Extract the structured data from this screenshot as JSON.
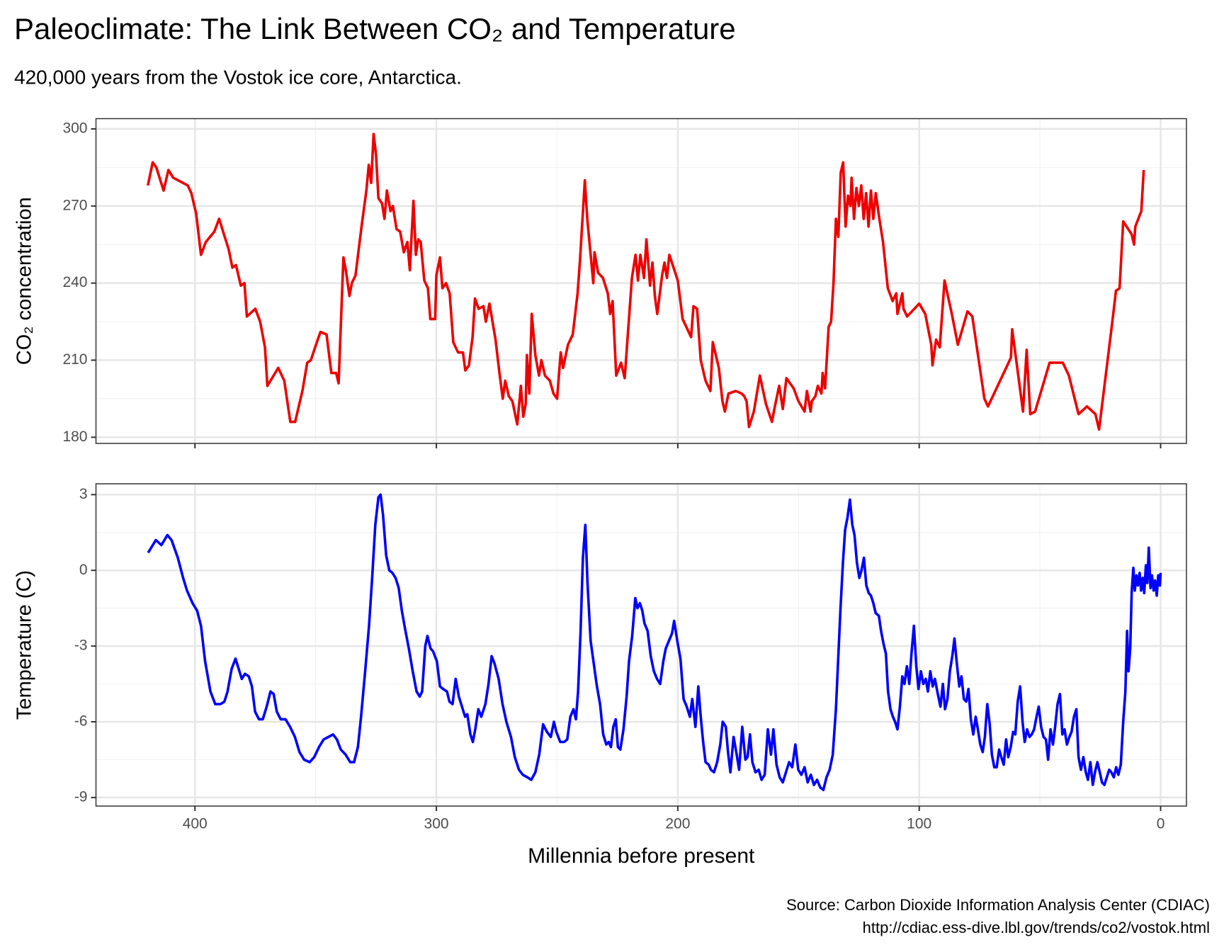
{
  "title": "Paleoclimate: The Link Between CO₂ and Temperature",
  "subtitle": "420,000 years from the Vostok ice core, Antarctica.",
  "caption": [
    "Source: Carbon Dioxide Information Analysis Center (CDIAC)",
    "http://cdiac.ess-dive.lbl.gov/trends/co2/vostok.html"
  ],
  "chart_data": [
    {
      "type": "line",
      "ylabel": "CO₂ concentration",
      "color": "#ee0000",
      "grid": true,
      "xlim": [
        441,
        -10.7
      ],
      "xticks": [
        400,
        300,
        200,
        100,
        0
      ],
      "ylim": [
        177.6,
        304
      ],
      "yticks": [
        180,
        210,
        240,
        270,
        300
      ],
      "x": [
        419.5,
        417.5,
        416,
        413,
        411,
        409,
        403,
        401.5,
        399.5,
        397.5,
        395.5,
        392,
        390,
        386,
        384.5,
        383,
        381,
        379.5,
        378.5,
        375,
        373,
        371,
        370,
        365.5,
        363,
        360.5,
        358.5,
        355.5,
        353.5,
        352,
        349.5,
        348,
        345.5,
        343.5,
        341.5,
        340.5,
        338.5,
        337.5,
        336,
        335,
        333.5,
        331,
        329,
        328,
        327,
        326,
        325,
        324,
        322.5,
        321.5,
        320.5,
        319,
        318,
        316.5,
        315,
        313.5,
        312,
        311,
        309.5,
        308.5,
        307.5,
        306.5,
        305,
        303.5,
        302.5,
        300.5,
        300,
        298.5,
        297.5,
        296,
        294.5,
        293,
        291,
        289,
        288,
        286.5,
        285,
        284,
        282.5,
        280.5,
        279.5,
        278,
        275.5,
        274,
        272.5,
        271.5,
        270,
        268.5,
        266.5,
        265,
        264,
        263,
        262.5,
        261.5,
        260.5,
        259,
        257.5,
        256.5,
        255,
        253,
        251.5,
        250,
        248.5,
        247.5,
        245.5,
        243.5,
        241.5,
        240.5,
        238.5,
        237.5,
        236,
        235,
        234.5,
        233,
        231,
        229,
        228,
        227,
        225.5,
        223.5,
        222,
        221,
        219,
        217.5,
        216.5,
        215.5,
        214,
        213,
        211.5,
        210.5,
        209.5,
        208.5,
        206.5,
        205.5,
        204.5,
        203.5,
        200,
        198,
        196.5,
        194.5,
        193.5,
        192,
        190.5,
        188.5,
        186.5,
        185.5,
        183,
        181.5,
        180.5,
        179,
        176,
        173.5,
        172.5,
        171.5,
        170.5,
        168.5,
        166,
        163.5,
        161,
        160,
        158,
        156.5,
        155,
        152,
        150,
        147.5,
        146.5,
        145,
        144.5,
        143,
        142,
        140.5,
        140,
        139,
        137.5,
        136.5,
        135.5,
        134.5,
        133.5,
        132.5,
        131.5,
        130.5,
        129.5,
        128.5,
        128,
        127,
        126,
        125,
        124,
        123,
        122,
        121,
        120,
        119,
        118,
        116.5,
        115,
        113,
        111,
        109.5,
        109,
        107,
        106.5,
        105,
        100,
        97.5,
        95,
        94.5,
        93,
        91.5,
        89.5,
        86.5,
        84,
        80,
        78,
        73,
        71.5,
        62,
        61.5,
        57,
        55.5,
        54,
        52,
        46,
        40.5,
        38,
        34,
        30.5,
        27,
        25.5,
        20,
        18.5,
        17,
        15.5,
        12,
        11,
        10.5,
        8,
        7
      ],
      "values": [
        278,
        287,
        285,
        276,
        284,
        281,
        278,
        275,
        267,
        251,
        256,
        260,
        265,
        253,
        246,
        247,
        239,
        240,
        227,
        230,
        225,
        215,
        200,
        207,
        202,
        186,
        186,
        198,
        209,
        210,
        217,
        221,
        220,
        205,
        205,
        201,
        250,
        245,
        235,
        240,
        243,
        262,
        276,
        286,
        279,
        298,
        290,
        273,
        271,
        265,
        276,
        268,
        270,
        261,
        260,
        252,
        256,
        245,
        272,
        251,
        257,
        256,
        241,
        238,
        226,
        226,
        243,
        250,
        238,
        240,
        236,
        217,
        213,
        213,
        206,
        208,
        219,
        234,
        230,
        231,
        225,
        232,
        218,
        206,
        195,
        202,
        196,
        194,
        185,
        200,
        188,
        193,
        212,
        197,
        228,
        212,
        204,
        210,
        204,
        202,
        197,
        195,
        213,
        207,
        216,
        220,
        236,
        249,
        280,
        265,
        250,
        240,
        252,
        244,
        242,
        236,
        228,
        233,
        204,
        209,
        203,
        216,
        242,
        251,
        241,
        251,
        242,
        257,
        239,
        248,
        235,
        228,
        243,
        248,
        242,
        251,
        241,
        226,
        223,
        219,
        231,
        230,
        210,
        202,
        198,
        217,
        207,
        194,
        190,
        197,
        198,
        197,
        196,
        194,
        184,
        190,
        204,
        193,
        186,
        191,
        200,
        191,
        203,
        199,
        194,
        190,
        198,
        190,
        194,
        196,
        200,
        197,
        205,
        199,
        223,
        225,
        240,
        265,
        258,
        283,
        287,
        262,
        274,
        270,
        281,
        265,
        277,
        270,
        278,
        265,
        275,
        262,
        276,
        265,
        275,
        265,
        256,
        238,
        233,
        236,
        228,
        236,
        230,
        227,
        232,
        228,
        216,
        208,
        218,
        215,
        241,
        228,
        216,
        229,
        227,
        195,
        192,
        211,
        222,
        190,
        214,
        189,
        190,
        209,
        209,
        204,
        189,
        192,
        189,
        183,
        225,
        237,
        238,
        264,
        259,
        255,
        262,
        268,
        284
      ]
    },
    {
      "type": "line",
      "ylabel": "Temperature (C)",
      "xlabel": "Millennia before present",
      "color": "#0000ff",
      "grid": true,
      "xlim": [
        441,
        -10.7
      ],
      "xticks": [
        400,
        300,
        200,
        100,
        0
      ],
      "ylim": [
        -9.34,
        3.43
      ],
      "yticks": [
        -9,
        -6,
        -3,
        0,
        3
      ],
      "x": [
        419.4,
        416.2,
        413.9,
        411.4,
        409.7,
        407.1,
        404.9,
        403.3,
        401.0,
        399.1,
        397.5,
        395.8,
        393.6,
        391.6,
        389.4,
        387.8,
        386.5,
        384.8,
        383.2,
        381.9,
        380.6,
        379.3,
        377.7,
        376.4,
        375.1,
        373.5,
        371.9,
        370.3,
        368.7,
        367.4,
        366.1,
        364.5,
        362.5,
        360.6,
        358.6,
        356.7,
        354.8,
        352.5,
        350.6,
        348.6,
        346.7,
        344.7,
        342.8,
        341.2,
        339.6,
        337.6,
        335.7,
        334.1,
        332.5,
        331.2,
        329.5,
        327.9,
        326.6,
        325.3,
        324.0,
        323.1,
        322.1,
        320.8,
        319.5,
        318.2,
        316.9,
        315.6,
        314.3,
        313.0,
        311.4,
        309.8,
        308.2,
        306.9,
        305.9,
        304.6,
        303.7,
        302.4,
        301.4,
        299.8,
        298.5,
        297.2,
        295.6,
        294.6,
        293.3,
        292.0,
        290.7,
        289.4,
        288.1,
        287.2,
        285.9,
        284.9,
        283.9,
        282.6,
        281.4,
        279.7,
        278.4,
        277.1,
        275.9,
        274.2,
        272.6,
        271.0,
        269.1,
        267.5,
        265.8,
        264.2,
        262.3,
        260.7,
        259.0,
        257.4,
        255.8,
        254.2,
        252.6,
        251.3,
        250.3,
        248.7,
        247.1,
        245.8,
        244.5,
        243.2,
        242.2,
        241.3,
        240.3,
        239.3,
        238.3,
        237.4,
        236.1,
        234.8,
        233.5,
        232.2,
        230.9,
        229.6,
        228.6,
        227.7,
        226.7,
        225.7,
        224.8,
        223.8,
        222.5,
        221.2,
        220.2,
        218.9,
        217.6,
        216.7,
        215.7,
        214.7,
        213.8,
        212.5,
        211.2,
        209.9,
        208.6,
        207.3,
        206.0,
        205.0,
        203.7,
        202.4,
        201.5,
        200.2,
        198.9,
        197.6,
        196.3,
        195.0,
        194.0,
        192.7,
        191.5,
        190.5,
        189.5,
        188.5,
        187.2,
        186.3,
        185.0,
        183.7,
        182.4,
        181.4,
        180.1,
        179.2,
        178.2,
        176.9,
        175.6,
        174.6,
        173.3,
        172.0,
        171.1,
        170.1,
        169.1,
        167.8,
        166.5,
        165.3,
        164.0,
        162.7,
        161.4,
        160.4,
        159.1,
        157.8,
        156.5,
        155.2,
        153.9,
        152.6,
        151.3,
        150.1,
        148.8,
        147.5,
        146.2,
        144.9,
        143.6,
        142.3,
        141.0,
        139.7,
        138.4,
        137.1,
        135.8,
        134.5,
        133.6,
        132.6,
        131.6,
        130.7,
        129.7,
        128.7,
        127.7,
        126.8,
        125.8,
        124.8,
        123.9,
        122.9,
        121.9,
        120.9,
        120.0,
        119.0,
        118.0,
        116.7,
        115.8,
        114.8,
        113.8,
        112.9,
        111.9,
        110.9,
        110.0,
        109.0,
        108.0,
        107.0,
        106.1,
        105.1,
        104.1,
        103.2,
        102.2,
        101.2,
        100.3,
        99.3,
        98.3,
        97.3,
        96.4,
        95.4,
        94.4,
        93.5,
        92.5,
        91.2,
        90.2,
        89.3,
        88.3,
        87.3,
        86.3,
        85.4,
        84.4,
        83.4,
        82.5,
        81.5,
        80.5,
        79.6,
        78.6,
        77.6,
        76.6,
        75.7,
        74.7,
        73.7,
        72.8,
        71.8,
        70.8,
        69.9,
        68.9,
        67.9,
        66.9,
        66.0,
        65.0,
        64.0,
        63.1,
        62.1,
        61.1,
        60.2,
        59.2,
        58.2,
        57.2,
        56.3,
        55.3,
        54.3,
        53.4,
        52.4,
        51.4,
        50.5,
        49.5,
        48.5,
        47.5,
        46.6,
        45.6,
        44.6,
        43.7,
        42.7,
        41.7,
        40.7,
        39.8,
        38.8,
        37.8,
        36.9,
        35.9,
        34.9,
        34.0,
        33.0,
        32.0,
        31.0,
        30.1,
        29.1,
        28.1,
        27.2,
        26.2,
        25.2,
        24.3,
        23.3,
        22.3,
        21.3,
        20.4,
        19.4,
        18.4,
        17.5,
        16.5,
        15.5,
        14.6,
        13.9,
        13.3,
        12.6,
        12.0,
        11.3,
        10.7,
        10.0,
        9.4,
        8.7,
        8.1,
        7.4,
        6.8,
        6.1,
        5.5,
        4.9,
        4.2,
        3.6,
        2.9,
        2.3,
        1.6,
        1.0,
        0.3,
        0.0
      ],
      "values": [
        0.7,
        1.2,
        1.0,
        1.4,
        1.2,
        0.5,
        -0.3,
        -0.8,
        -1.3,
        -1.6,
        -2.2,
        -3.6,
        -4.8,
        -5.3,
        -5.3,
        -5.2,
        -4.8,
        -3.9,
        -3.5,
        -3.9,
        -4.3,
        -4.1,
        -4.2,
        -4.6,
        -5.6,
        -5.9,
        -5.9,
        -5.4,
        -4.8,
        -4.9,
        -5.6,
        -5.9,
        -5.9,
        -6.2,
        -6.6,
        -7.2,
        -7.5,
        -7.6,
        -7.4,
        -7.0,
        -6.7,
        -6.6,
        -6.5,
        -6.7,
        -7.1,
        -7.3,
        -7.6,
        -7.6,
        -7.0,
        -5.8,
        -4.0,
        -2.2,
        -0.3,
        1.8,
        2.9,
        3.0,
        2.2,
        0.6,
        0.0,
        -0.1,
        -0.3,
        -0.7,
        -1.6,
        -2.3,
        -3.1,
        -4.0,
        -4.8,
        -5.0,
        -4.8,
        -3.0,
        -2.6,
        -3.1,
        -3.2,
        -3.6,
        -4.6,
        -4.7,
        -4.8,
        -5.2,
        -5.3,
        -4.3,
        -5.0,
        -5.4,
        -5.8,
        -5.7,
        -6.5,
        -6.8,
        -6.3,
        -5.5,
        -5.8,
        -5.3,
        -4.5,
        -3.4,
        -3.7,
        -4.3,
        -5.3,
        -6.0,
        -6.6,
        -7.4,
        -7.9,
        -8.1,
        -8.2,
        -8.3,
        -8.0,
        -7.3,
        -6.1,
        -6.4,
        -6.6,
        -6.0,
        -6.4,
        -6.8,
        -6.8,
        -6.7,
        -5.8,
        -5.5,
        -5.9,
        -4.8,
        -2.5,
        0.5,
        1.8,
        -0.5,
        -2.8,
        -3.7,
        -4.6,
        -5.3,
        -6.5,
        -6.9,
        -6.8,
        -7.0,
        -6.2,
        -5.9,
        -7.0,
        -7.1,
        -6.3,
        -5.0,
        -3.6,
        -2.6,
        -1.1,
        -1.5,
        -1.3,
        -1.6,
        -2.1,
        -2.4,
        -3.4,
        -4.0,
        -4.3,
        -4.5,
        -3.6,
        -3.1,
        -2.8,
        -2.5,
        -2.0,
        -2.8,
        -3.5,
        -5.1,
        -5.4,
        -5.8,
        -5.1,
        -6.2,
        -4.6,
        -5.8,
        -6.8,
        -7.6,
        -7.7,
        -7.9,
        -8.0,
        -7.6,
        -6.9,
        -6.0,
        -6.2,
        -7.2,
        -8.0,
        -6.6,
        -7.3,
        -7.9,
        -6.2,
        -7.5,
        -7.4,
        -6.5,
        -7.6,
        -8.0,
        -7.9,
        -8.3,
        -8.1,
        -6.3,
        -7.3,
        -6.3,
        -7.7,
        -8.2,
        -8.4,
        -8.0,
        -7.6,
        -7.8,
        -6.9,
        -7.9,
        -8.1,
        -7.8,
        -8.4,
        -8.1,
        -8.5,
        -8.3,
        -8.6,
        -8.7,
        -8.2,
        -7.9,
        -7.3,
        -5.5,
        -3.6,
        -1.5,
        0.3,
        1.6,
        2.1,
        2.8,
        1.8,
        1.4,
        0.3,
        -0.3,
        0.0,
        0.5,
        -0.6,
        -0.9,
        -1.0,
        -1.3,
        -1.7,
        -1.8,
        -2.4,
        -2.9,
        -3.3,
        -4.8,
        -5.5,
        -5.8,
        -6.0,
        -6.3,
        -5.4,
        -4.2,
        -4.5,
        -3.8,
        -4.5,
        -3.3,
        -2.2,
        -3.8,
        -4.7,
        -4.0,
        -4.5,
        -4.3,
        -4.8,
        -4.0,
        -4.6,
        -4.3,
        -4.8,
        -5.4,
        -4.5,
        -5.5,
        -5.1,
        -4.0,
        -3.4,
        -2.7,
        -3.7,
        -4.6,
        -4.2,
        -5.1,
        -5.2,
        -4.7,
        -5.9,
        -6.5,
        -5.8,
        -6.3,
        -6.9,
        -7.2,
        -6.6,
        -5.3,
        -6.1,
        -7.3,
        -7.8,
        -7.8,
        -7.1,
        -7.4,
        -7.7,
        -6.7,
        -7.4,
        -7.0,
        -6.4,
        -6.5,
        -5.2,
        -4.6,
        -6.0,
        -6.8,
        -6.3,
        -6.6,
        -6.5,
        -6.3,
        -5.8,
        -5.4,
        -6.2,
        -6.6,
        -6.7,
        -7.5,
        -6.3,
        -6.9,
        -6.2,
        -5.3,
        -4.9,
        -6.5,
        -6.3,
        -6.9,
        -6.6,
        -6.4,
        -5.8,
        -5.5,
        -7.4,
        -7.9,
        -7.4,
        -8.0,
        -8.3,
        -7.6,
        -8.5,
        -8.0,
        -7.6,
        -8.0,
        -8.4,
        -8.5,
        -8.2,
        -7.9,
        -8.0,
        -8.2,
        -7.8,
        -8.1,
        -7.7,
        -6.0,
        -4.8,
        -2.4,
        -4.0,
        -3.1,
        -0.9,
        0.1,
        -0.8,
        -0.2,
        -0.6,
        -0.1,
        -0.8,
        -0.3,
        -0.9,
        0.2,
        -0.5,
        0.9,
        -0.7,
        -0.2,
        -0.8,
        -0.4,
        -1.0,
        -0.2,
        -0.6,
        -0.1
      ]
    }
  ]
}
